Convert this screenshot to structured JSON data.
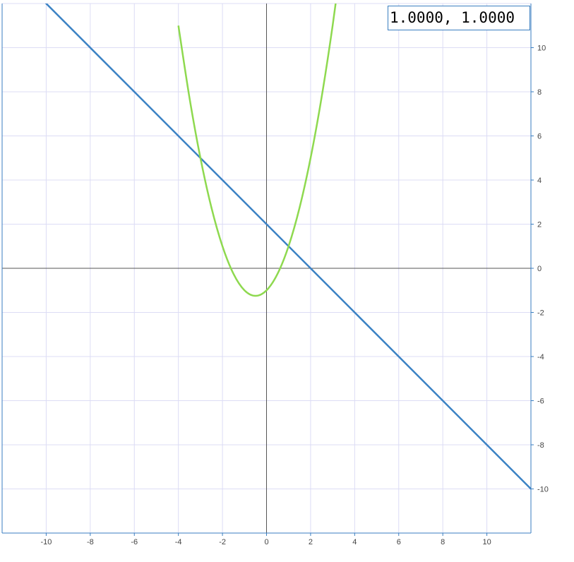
{
  "chart_data": {
    "type": "line",
    "xlim": [
      -12,
      12
    ],
    "ylim": [
      -12,
      12
    ],
    "x_ticks": [
      -10,
      -8,
      -6,
      -4,
      -2,
      0,
      2,
      4,
      6,
      8,
      10
    ],
    "y_ticks": [
      -10,
      -8,
      -6,
      -4,
      -2,
      0,
      2,
      4,
      6,
      8,
      10
    ],
    "x_tick_labels": [
      "-10",
      "-8",
      "-6",
      "-4",
      "-2",
      "0",
      "2",
      "4",
      "6",
      "8",
      "10"
    ],
    "y_tick_labels": [
      "-10",
      "-8",
      "-6",
      "-4",
      "-2",
      "0",
      "2",
      "4",
      "6",
      "8",
      "10"
    ],
    "grid": true,
    "series": [
      {
        "color": "#3b82c4",
        "x": [
          -12,
          -10,
          -8,
          -6,
          -4,
          -2,
          0,
          2,
          4,
          6,
          8,
          10,
          12
        ],
        "y": [
          14,
          12,
          10,
          8,
          6,
          4,
          2,
          0,
          -2,
          -4,
          -6,
          -8,
          -10
        ]
      },
      {
        "color": "#8ed94f",
        "x": [
          -4.0,
          -3.5,
          -3.0,
          -2.5,
          -2.0,
          -1.5,
          -1.0,
          -0.5,
          0.0,
          0.5,
          1.0,
          1.5,
          2.0,
          2.5,
          3.0,
          3.5
        ],
        "y": [
          11.0,
          7.75,
          5.0,
          2.75,
          1.0,
          -0.25,
          -1.0,
          -1.25,
          -1.0,
          -0.25,
          1.0,
          2.75,
          5.0,
          7.75,
          11.0,
          14.75
        ]
      }
    ]
  },
  "coordinate_readout": "1.0000, 1.0000",
  "colors": {
    "grid": "#dcdcf5",
    "axis": "#555555",
    "frame": "#3a7ec0"
  }
}
